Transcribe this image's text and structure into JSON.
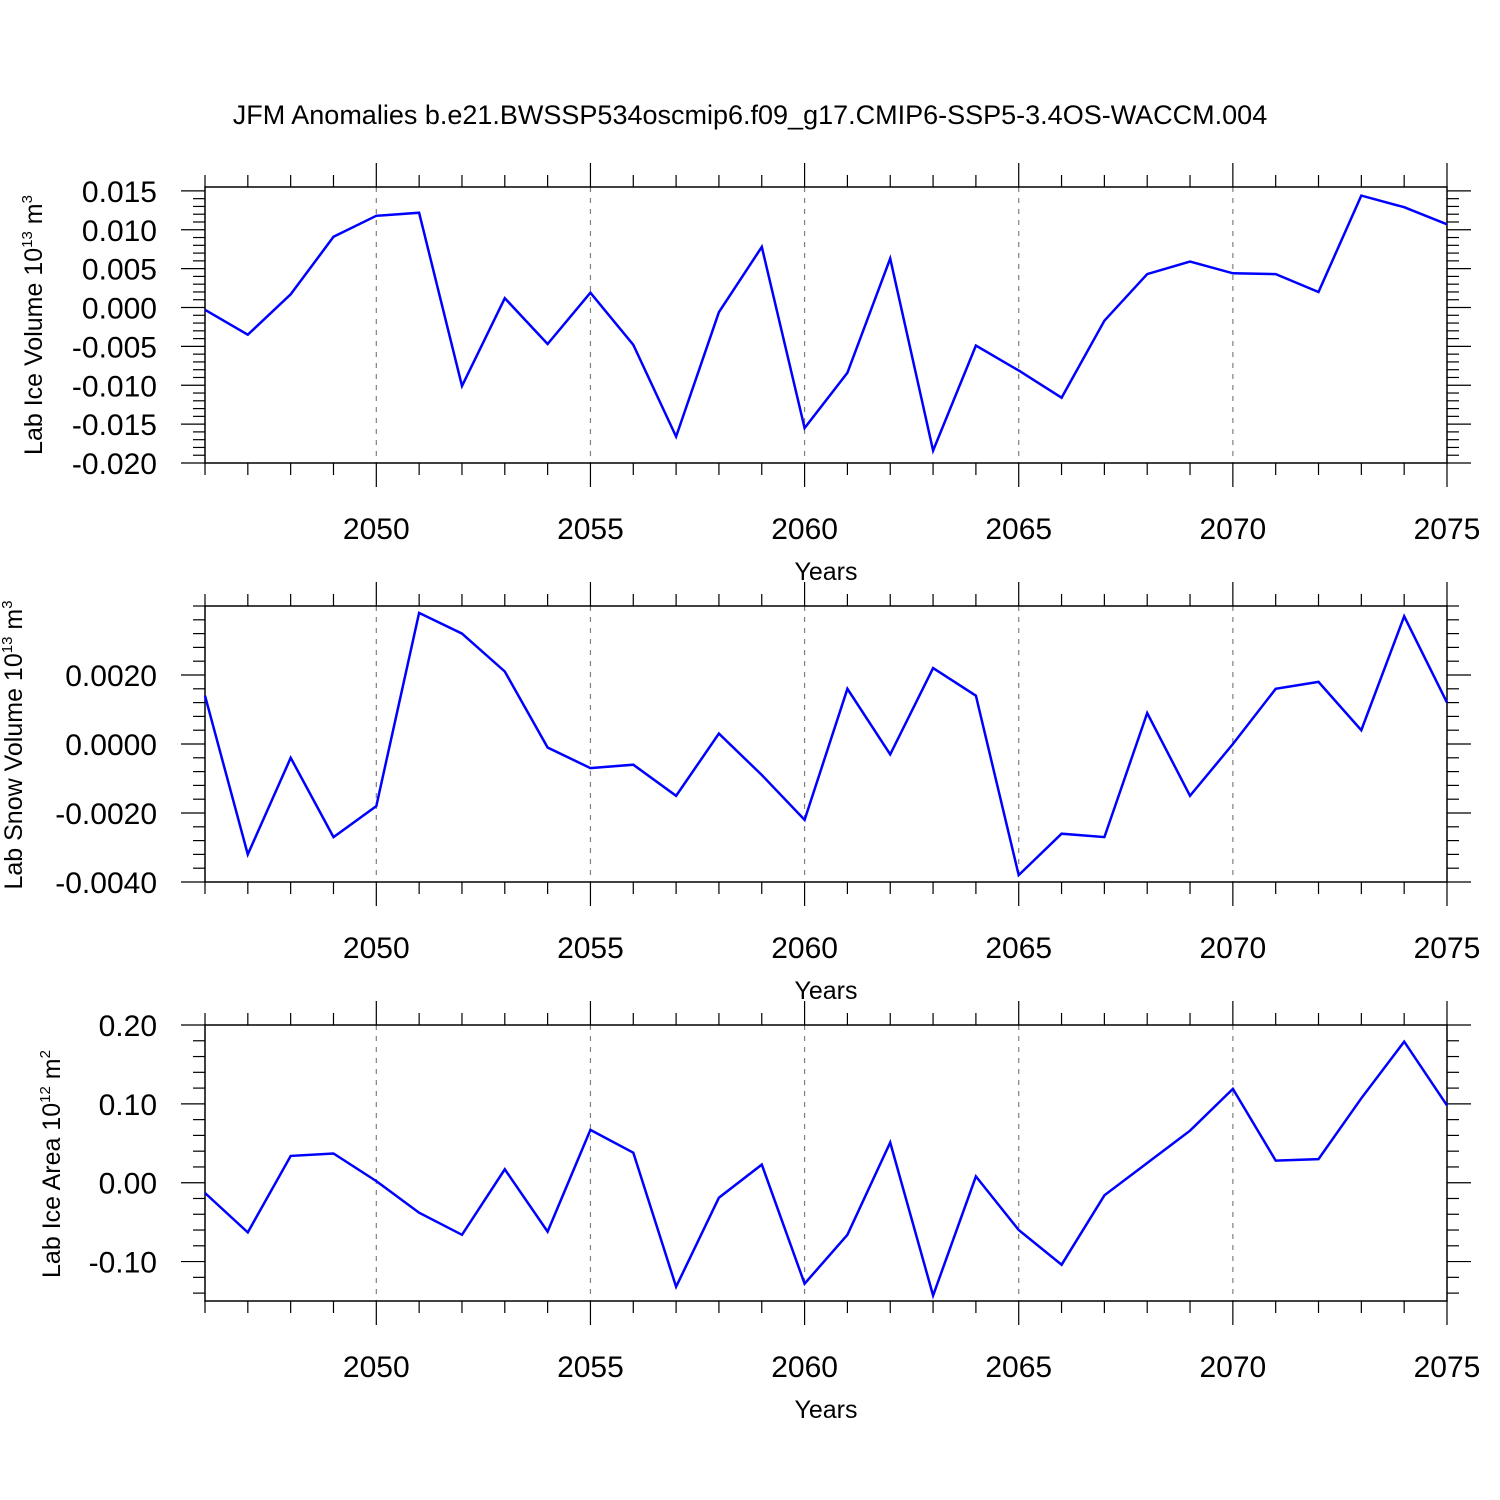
{
  "figure_title": "JFM Anomalies b.e21.BWSSP534oscmip6.f09_g17.CMIP6-SSP5-3.4OS-WACCM.004",
  "colors": {
    "line": "#0000ff",
    "axis": "#000000",
    "grid": "#808080"
  },
  "chart_data": [
    {
      "type": "line",
      "title": "",
      "xlabel": "Years",
      "ylabel": "Lab Ice Volume 10",
      "ylabel_exp": "13",
      "ylabel_unit": " m",
      "ylabel_unit_exp": "3",
      "xlim": [
        2046,
        2075
      ],
      "ylim": [
        -0.02,
        0.0155
      ],
      "xticks": [
        2050,
        2055,
        2060,
        2065,
        2070,
        2075
      ],
      "xtick_labels": [
        "2050",
        "2055",
        "2060",
        "2065",
        "2070",
        "2075"
      ],
      "yticks": [
        0.015,
        0.01,
        0.005,
        0.0,
        -0.005,
        -0.01,
        -0.015,
        -0.02
      ],
      "ytick_labels": [
        "0.015",
        "0.010",
        "0.005",
        "0.000",
        "-0.005",
        "-0.010",
        "-0.015",
        "-0.020"
      ],
      "grid": "vertical-dashed",
      "x": [
        2046,
        2047,
        2048,
        2049,
        2050,
        2051,
        2052,
        2053,
        2054,
        2055,
        2056,
        2057,
        2058,
        2059,
        2060,
        2061,
        2062,
        2063,
        2064,
        2065,
        2066,
        2067,
        2068,
        2069,
        2070,
        2071,
        2072,
        2073,
        2074,
        2075
      ],
      "series": [
        {
          "name": "Lab Ice Volume",
          "values": [
            -0.0003,
            -0.0035,
            0.0017,
            0.0091,
            0.0118,
            0.0122,
            -0.0101,
            0.0012,
            -0.0047,
            0.0019,
            -0.0048,
            -0.0166,
            -0.0006,
            0.0078,
            -0.0155,
            -0.0084,
            0.0063,
            -0.0184,
            -0.0049,
            -0.0081,
            -0.0116,
            -0.0017,
            0.0043,
            0.0059,
            0.0044,
            0.0043,
            0.002,
            0.0144,
            0.0129,
            0.0107
          ]
        }
      ]
    },
    {
      "type": "line",
      "title": "",
      "xlabel": "Years",
      "ylabel": "Lab Snow Volume 10",
      "ylabel_exp": "13",
      "ylabel_unit": " m",
      "ylabel_unit_exp": "3",
      "xlim": [
        2046,
        2075
      ],
      "ylim": [
        -0.004,
        0.004
      ],
      "xticks": [
        2050,
        2055,
        2060,
        2065,
        2070,
        2075
      ],
      "xtick_labels": [
        "2050",
        "2055",
        "2060",
        "2065",
        "2070",
        "2075"
      ],
      "yticks": [
        0.002,
        0.0,
        -0.002,
        -0.004
      ],
      "ytick_labels": [
        "0.0020",
        "0.0000",
        "-0.0020",
        "-0.0040"
      ],
      "grid": "vertical-dashed",
      "x": [
        2046,
        2047,
        2048,
        2049,
        2050,
        2051,
        2052,
        2053,
        2054,
        2055,
        2056,
        2057,
        2058,
        2059,
        2060,
        2061,
        2062,
        2063,
        2064,
        2065,
        2066,
        2067,
        2068,
        2069,
        2070,
        2071,
        2072,
        2073,
        2074,
        2075
      ],
      "series": [
        {
          "name": "Lab Snow Volume",
          "values": [
            0.0014,
            -0.0032,
            -0.0004,
            -0.0027,
            -0.0018,
            0.0038,
            0.0032,
            0.0021,
            -0.0001,
            -0.0007,
            -0.0006,
            -0.0015,
            0.0003,
            -0.0009,
            -0.0022,
            0.0016,
            -0.0003,
            0.0022,
            0.0014,
            -0.0038,
            -0.0026,
            -0.0027,
            0.0009,
            -0.0015,
            0.0,
            0.0016,
            0.0018,
            0.0004,
            0.0037,
            0.0012
          ]
        }
      ]
    },
    {
      "type": "line",
      "title": "",
      "xlabel": "Years",
      "ylabel": "Lab Ice Area 10",
      "ylabel_exp": "12",
      "ylabel_unit": " m",
      "ylabel_unit_exp": "2",
      "xlim": [
        2046,
        2075
      ],
      "ylim": [
        -0.15,
        0.2
      ],
      "xticks": [
        2050,
        2055,
        2060,
        2065,
        2070,
        2075
      ],
      "xtick_labels": [
        "2050",
        "2055",
        "2060",
        "2065",
        "2070",
        "2075"
      ],
      "yticks": [
        0.2,
        0.1,
        0.0,
        -0.1
      ],
      "ytick_labels": [
        "0.20",
        "0.10",
        "0.00",
        "-0.10"
      ],
      "grid": "vertical-dashed",
      "x": [
        2046,
        2047,
        2048,
        2049,
        2050,
        2051,
        2052,
        2053,
        2054,
        2055,
        2056,
        2057,
        2058,
        2059,
        2060,
        2061,
        2062,
        2063,
        2064,
        2065,
        2066,
        2067,
        2068,
        2069,
        2070,
        2071,
        2072,
        2073,
        2074,
        2075
      ],
      "series": [
        {
          "name": "Lab Ice Area",
          "values": [
            -0.013,
            -0.063,
            0.034,
            0.037,
            0.002,
            -0.038,
            -0.066,
            0.017,
            -0.062,
            0.067,
            0.038,
            -0.132,
            -0.019,
            0.023,
            -0.128,
            -0.066,
            0.051,
            -0.143,
            0.008,
            -0.06,
            -0.104,
            -0.016,
            0.025,
            0.066,
            0.119,
            0.028,
            0.03,
            0.107,
            0.179,
            0.098
          ]
        }
      ]
    }
  ]
}
